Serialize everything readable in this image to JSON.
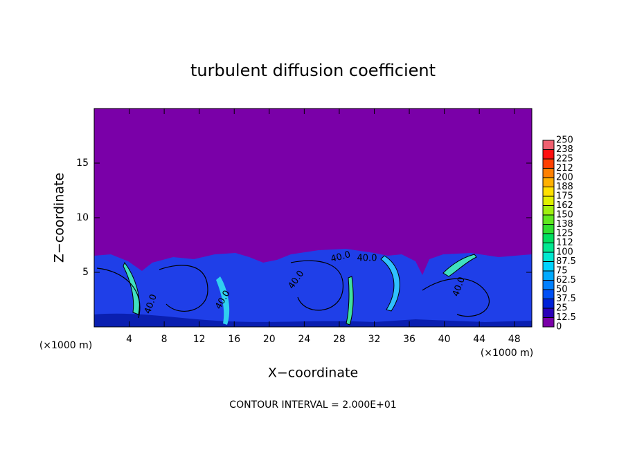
{
  "chart_data": {
    "type": "contour",
    "title": "turbulent diffusion coefficient",
    "xlabel": "X−coordinate",
    "ylabel": "Z−coordinate",
    "x_unit": "(×1000 m)",
    "y_unit": "(×1000 m)",
    "footer": "CONTOUR INTERVAL = 2.000E+01",
    "contour_labels": [
      "40.0",
      "40.0",
      "40.0",
      "40.0",
      "40.0",
      "40.0"
    ],
    "xlim": [
      0,
      50
    ],
    "ylim": [
      0,
      20
    ],
    "xticks": [
      4,
      8,
      12,
      16,
      20,
      24,
      28,
      32,
      36,
      40,
      44,
      48
    ],
    "yticks": [
      5,
      10,
      15
    ],
    "colorbar": {
      "levels": [
        0,
        12.5,
        25,
        37.5,
        50,
        62.5,
        75,
        87.5,
        100,
        {
          "value": 112.5,
          "label": "112"
        },
        125,
        {
          "value": 137.5,
          "label": "138"
        },
        150,
        {
          "value": 162.5,
          "label": "162"
        },
        175,
        {
          "value": 187.5,
          "label": "188"
        },
        200,
        {
          "value": 212.5,
          "label": "212"
        },
        225,
        {
          "value": 237.5,
          "label": "238"
        },
        250
      ],
      "colors": [
        "#7a00a8",
        "#2a00b8",
        "#0022d8",
        "#0050f5",
        "#0080ff",
        "#00aaff",
        "#00d2ff",
        "#00e8d0",
        "#00e890",
        "#00e060",
        "#30e030",
        "#60e820",
        "#a0f010",
        "#e0f000",
        "#ffe000",
        "#ffb000",
        "#ff8000",
        "#ff4000",
        "#ff1010",
        "#f06070"
      ]
    }
  }
}
